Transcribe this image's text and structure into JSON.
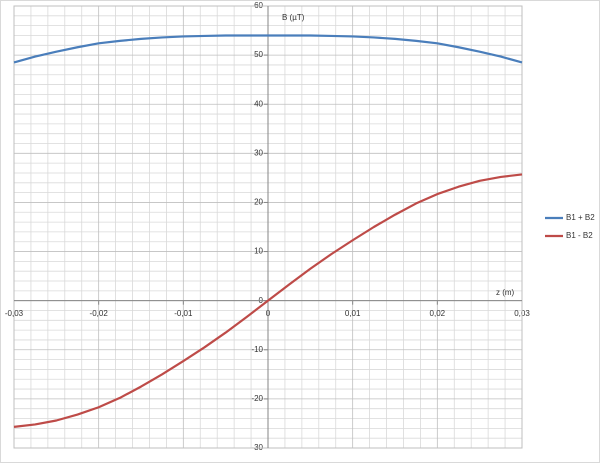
{
  "chart_data": {
    "type": "line",
    "x_label": "z  (m)",
    "y_label": "B  (µT)",
    "x": [
      -0.03,
      -0.0275,
      -0.025,
      -0.0225,
      -0.02,
      -0.0175,
      -0.015,
      -0.0125,
      -0.01,
      -0.0075,
      -0.005,
      -0.0025,
      0,
      0.0025,
      0.005,
      0.0075,
      0.01,
      0.0125,
      0.015,
      0.0175,
      0.02,
      0.0225,
      0.025,
      0.0275,
      0.03
    ],
    "series": [
      {
        "name": "B1 + B2",
        "color": "#4a7ebb",
        "values": [
          48.5,
          49.7,
          50.7,
          51.6,
          52.4,
          52.9,
          53.3,
          53.6,
          53.8,
          53.9,
          54,
          54,
          54,
          54,
          54,
          53.9,
          53.8,
          53.6,
          53.3,
          52.9,
          52.4,
          51.6,
          50.7,
          49.7,
          48.5
        ]
      },
      {
        "name": "B1 - B2",
        "color": "#be4b48",
        "values": [
          -25.7,
          -25.2,
          -24.4,
          -23.2,
          -21.7,
          -19.8,
          -17.5,
          -15,
          -12.3,
          -9.5,
          -6.5,
          -3.3,
          0,
          3.3,
          6.5,
          9.5,
          12.3,
          15,
          17.5,
          19.8,
          21.7,
          23.2,
          24.4,
          25.2,
          25.7
        ]
      }
    ],
    "xlim": [
      -0.03,
      0.03
    ],
    "xticks": [
      {
        "value": -0.03,
        "label": "-0,03"
      },
      {
        "value": -0.02,
        "label": "-0,02"
      },
      {
        "value": -0.01,
        "label": "-0,01"
      },
      0,
      {
        "value": 0.01,
        "label": "0,01"
      },
      {
        "value": 0.02,
        "label": "0,02"
      },
      {
        "value": 0.03,
        "label": "0,03"
      }
    ],
    "ylim": [
      -30,
      60
    ],
    "yticks": [
      -30,
      -20,
      -10,
      0,
      10,
      20,
      30,
      40,
      50,
      60
    ],
    "grid": true,
    "legend": "right"
  }
}
